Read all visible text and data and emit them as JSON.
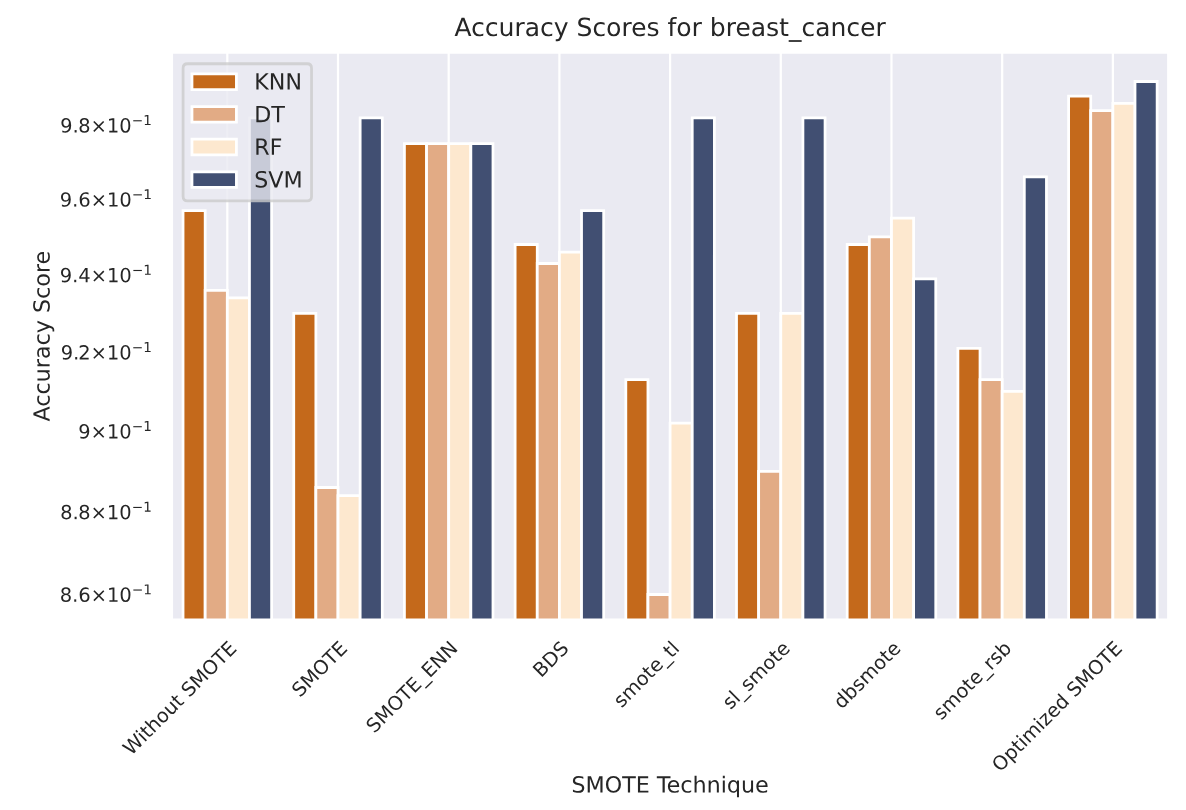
{
  "chart_data": {
    "type": "bar",
    "title": "Accuracy Scores for breast_cancer",
    "xlabel": "SMOTE Technique",
    "ylabel": "Accuracy Score",
    "categories": [
      "Without SMOTE",
      "SMOTE",
      "SMOTE_ENN",
      "BDS",
      "smote_tl",
      "sl_smote",
      "dbsmote",
      "smote_rsb",
      "Optimized SMOTE"
    ],
    "series": [
      {
        "name": "KNN",
        "color": "#c4691b",
        "values": [
          0.957,
          0.93,
          0.975,
          0.948,
          0.913,
          0.93,
          0.948,
          0.921,
          0.988
        ]
      },
      {
        "name": "DT",
        "color": "#e2ab85",
        "values": [
          0.936,
          0.886,
          0.975,
          0.943,
          0.86,
          0.89,
          0.95,
          0.913,
          0.984
        ]
      },
      {
        "name": "RF",
        "color": "#fde8cf",
        "values": [
          0.934,
          0.884,
          0.975,
          0.946,
          0.902,
          0.93,
          0.955,
          0.91,
          0.986
        ]
      },
      {
        "name": "SVM",
        "color": "#414f72",
        "values": [
          0.982,
          0.982,
          0.975,
          0.957,
          0.982,
          0.982,
          0.939,
          0.966,
          0.992
        ]
      }
    ],
    "log": true,
    "ylim": [
      0.854,
      1.0
    ],
    "yticks": [
      {
        "value": 0.86,
        "label": "8.6×10$^{−1}$"
      },
      {
        "value": 0.88,
        "label": "8.8×10$^{−1}$"
      },
      {
        "value": 0.9,
        "label": "9×10$^{−1}$"
      },
      {
        "value": 0.92,
        "label": "9.2×10$^{−1}$"
      },
      {
        "value": 0.94,
        "label": "9.4×10$^{−1}$"
      },
      {
        "value": 0.96,
        "label": "9.6×10$^{−1}$"
      },
      {
        "value": 0.98,
        "label": "9.8×10$^{−1}$"
      }
    ],
    "grid": "x",
    "legend": "top left"
  }
}
